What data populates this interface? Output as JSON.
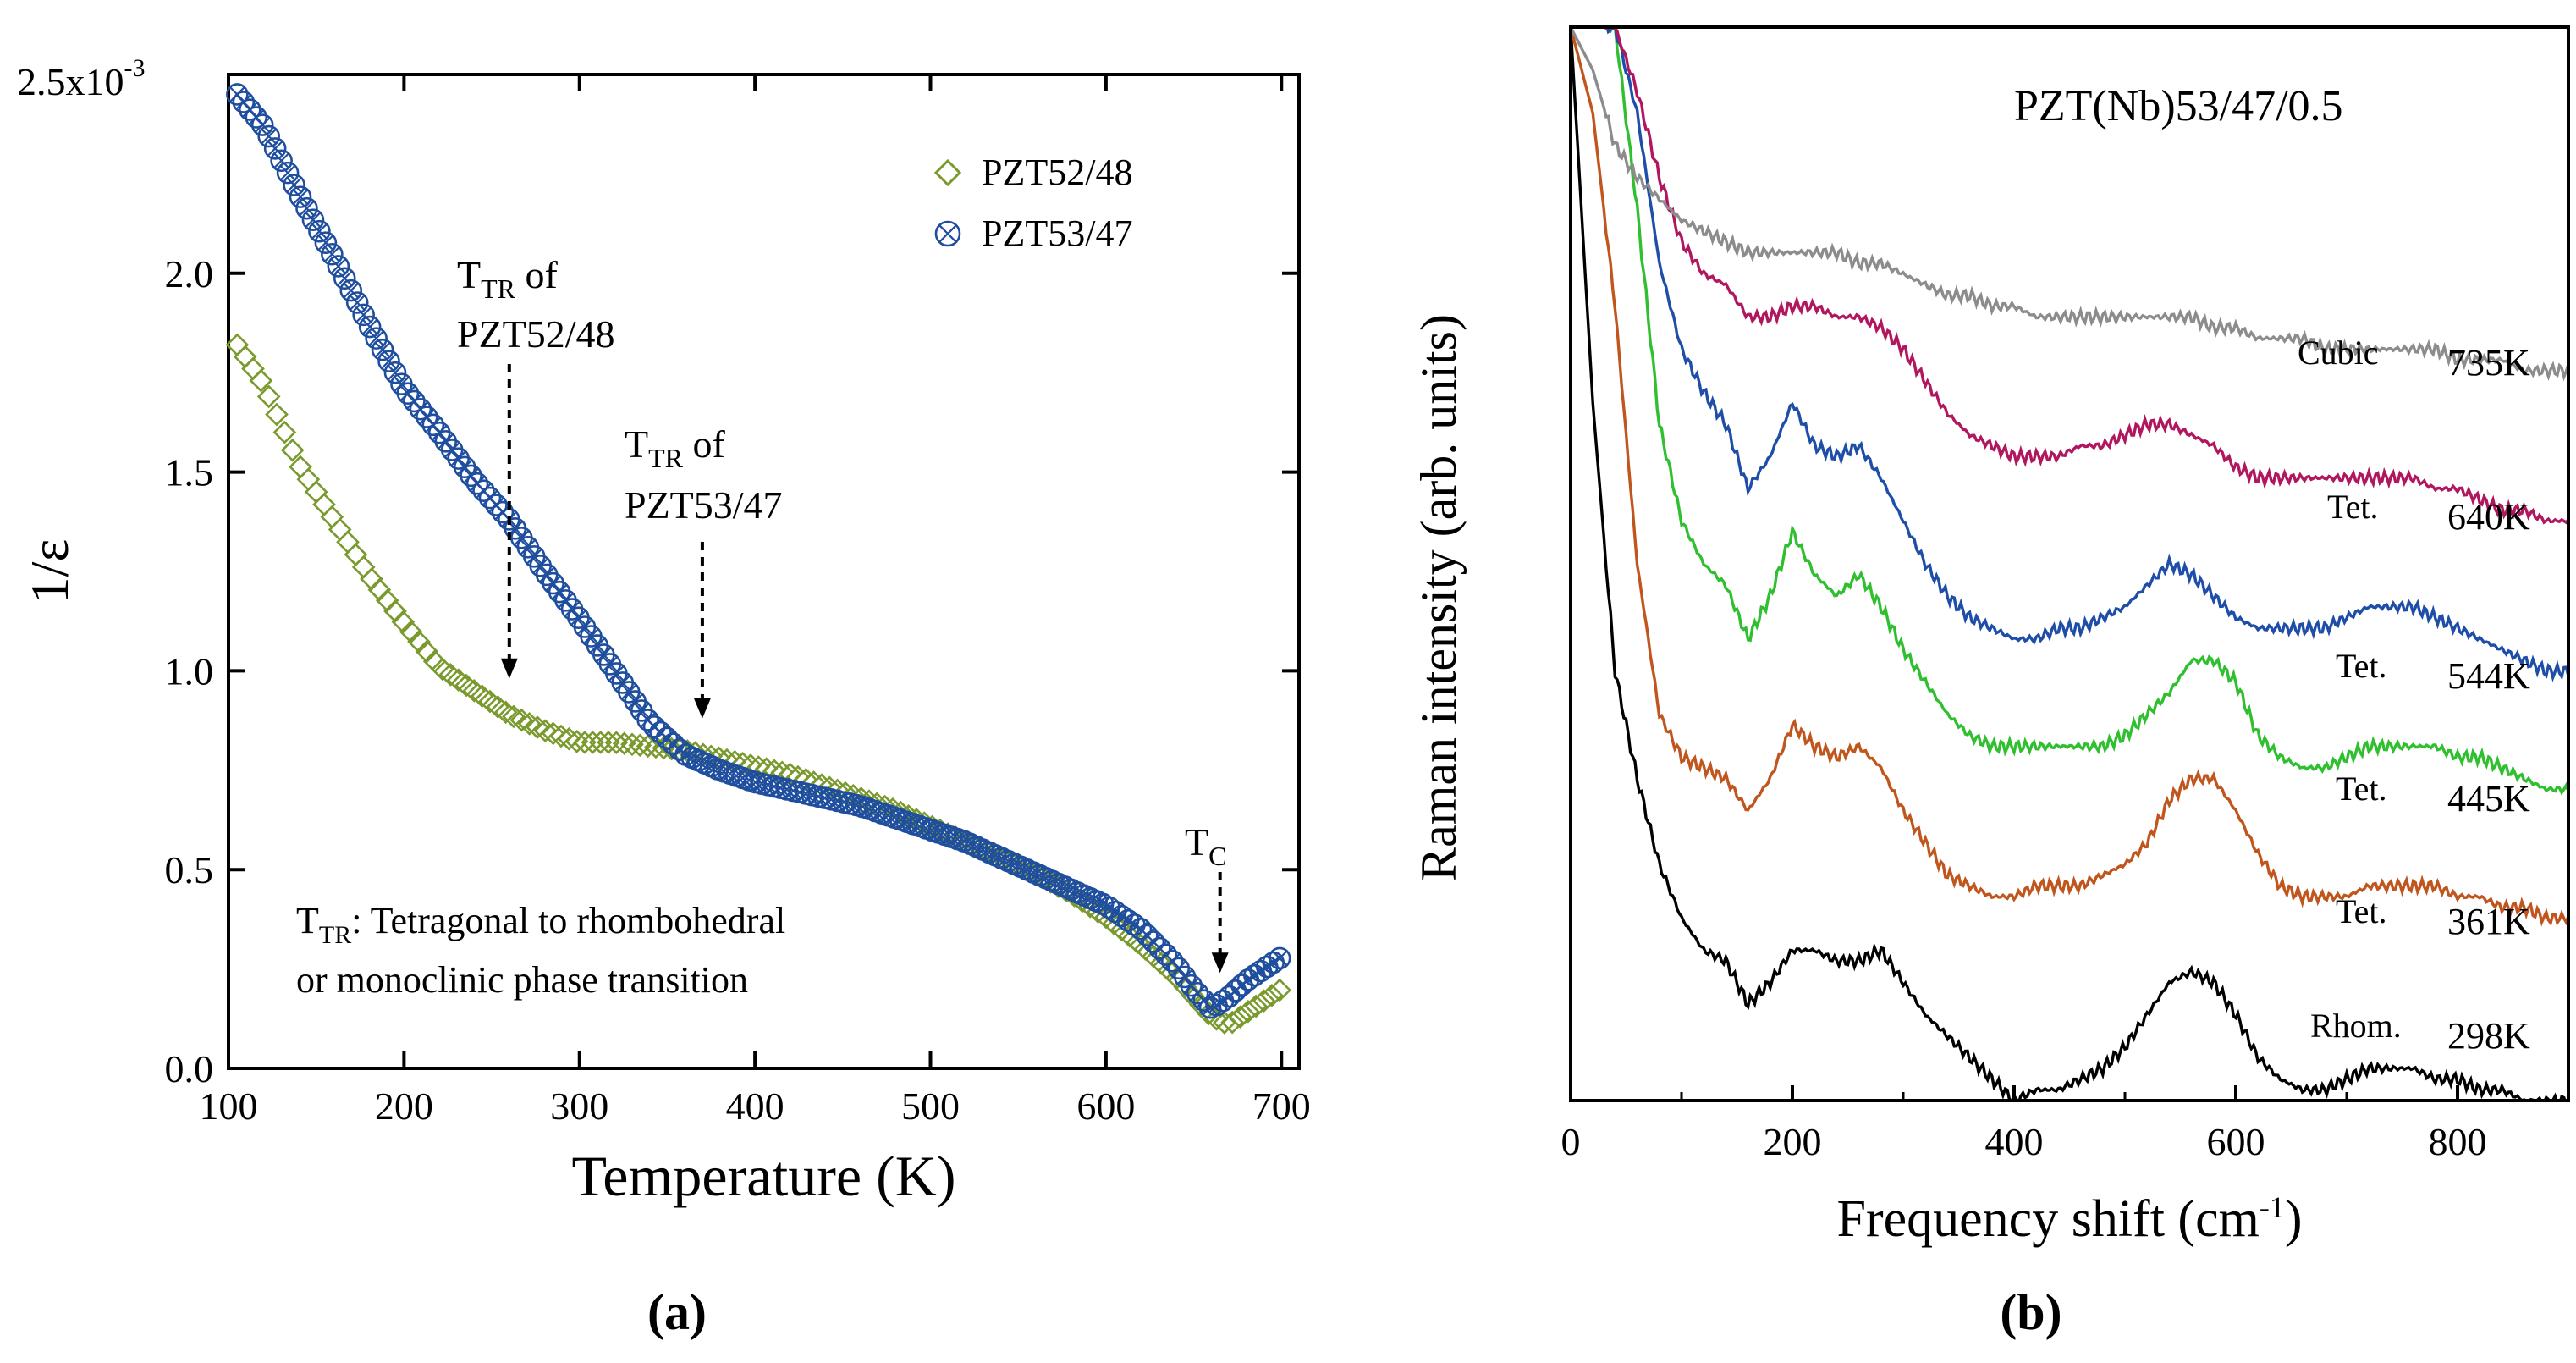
{
  "chart_data": [
    {
      "type": "scatter",
      "panel_label": "(a)",
      "xlabel": "Temperature (K)",
      "ylabel": "1/ε",
      "y_multiplier": "2.5x10",
      "y_exponent": "-3",
      "xlim": [
        100,
        710
      ],
      "ylim": [
        0.0,
        2.5
      ],
      "x_ticks": [
        "100",
        "200",
        "300",
        "400",
        "500",
        "600",
        "700"
      ],
      "y_ticks": [
        "0.0",
        "0.5",
        "1.0",
        "1.5",
        "2.0"
      ],
      "grid": false,
      "legend_position": "top-right",
      "series": [
        {
          "name": "PZT52/48",
          "marker": "diamond",
          "color": "#7a9a2e",
          "x": [
            105,
            120,
            140,
            160,
            180,
            200,
            220,
            240,
            260,
            280,
            300,
            320,
            340,
            360,
            380,
            400,
            420,
            440,
            460,
            480,
            500,
            520,
            540,
            560,
            580,
            600,
            620,
            640,
            650,
            660,
            670,
            680,
            690,
            700
          ],
          "y": [
            1.82,
            1.72,
            1.52,
            1.38,
            1.24,
            1.12,
            1.01,
            0.95,
            0.89,
            0.85,
            0.82,
            0.82,
            0.81,
            0.8,
            0.78,
            0.76,
            0.74,
            0.71,
            0.68,
            0.65,
            0.61,
            0.57,
            0.53,
            0.49,
            0.44,
            0.38,
            0.31,
            0.23,
            0.18,
            0.13,
            0.11,
            0.14,
            0.17,
            0.2
          ]
        },
        {
          "name": "PZT53/47",
          "marker": "circle-cross",
          "color": "#1f4e9e",
          "x": [
            105,
            120,
            140,
            160,
            180,
            200,
            220,
            240,
            260,
            280,
            300,
            320,
            340,
            360,
            380,
            400,
            420,
            440,
            460,
            480,
            500,
            520,
            540,
            560,
            580,
            600,
            620,
            640,
            650,
            660,
            670,
            680,
            690,
            700
          ],
          "y": [
            2.45,
            2.37,
            2.2,
            2.04,
            1.87,
            1.71,
            1.6,
            1.48,
            1.38,
            1.25,
            1.13,
            1.0,
            0.87,
            0.79,
            0.75,
            0.72,
            0.7,
            0.68,
            0.66,
            0.63,
            0.6,
            0.57,
            0.53,
            0.49,
            0.45,
            0.41,
            0.35,
            0.26,
            0.2,
            0.15,
            0.18,
            0.22,
            0.25,
            0.28
          ]
        }
      ],
      "annotations": [
        {
          "label": "T",
          "sub": "TR",
          "rest": " of",
          "line2": "PZT52/48",
          "arrow_x": 260,
          "arrow_y": 0.98
        },
        {
          "label": "T",
          "sub": "TR",
          "rest": " of",
          "line2": "PZT53/47",
          "arrow_x": 370,
          "arrow_y": 0.88
        },
        {
          "label": "T",
          "sub": "C",
          "rest": "",
          "line2": "",
          "arrow_x": 665,
          "arrow_y": 0.24
        }
      ],
      "note_line1_main": "T",
      "note_line1_sub": "TR",
      "note_line1_rest": ": Tetragonal to rhombohedral",
      "note_line2": "or monoclinic phase transition"
    },
    {
      "type": "line",
      "panel_label": "(b)",
      "title": "PZT(Nb)53/47/0.5",
      "xlabel": "Frequency shift (cm",
      "xlabel_sup": "-1",
      "xlabel_end": ")",
      "ylabel": "Raman intensity (arb. units)",
      "xlim": [
        0,
        900
      ],
      "x_ticks": [
        "0",
        "200",
        "400",
        "600",
        "800"
      ],
      "grid": false,
      "x": [
        0,
        20,
        40,
        60,
        80,
        100,
        120,
        140,
        160,
        180,
        200,
        220,
        240,
        260,
        280,
        300,
        320,
        340,
        360,
        380,
        400,
        420,
        440,
        460,
        480,
        500,
        520,
        540,
        560,
        580,
        600,
        620,
        640,
        660,
        680,
        700,
        720,
        740,
        760,
        780,
        800,
        820,
        840,
        860,
        880,
        900
      ],
      "series": [
        {
          "name": "298K",
          "phase": "Rhom.",
          "color": "#000000",
          "y": [
            100,
            65,
            40,
            30,
            22,
            17,
            14,
            13,
            9,
            11,
            14,
            14,
            13,
            13,
            14,
            11,
            8,
            6,
            4,
            2,
            0,
            1,
            1,
            2,
            3,
            5,
            8,
            11,
            12,
            11,
            8,
            4,
            2,
            1,
            1,
            2,
            3,
            3,
            3,
            2,
            2,
            1,
            1,
            0,
            0,
            0
          ]
        },
        {
          "name": "361K",
          "phase": "Tet.",
          "color": "#c0561e",
          "y": [
            100,
            92,
            74,
            50,
            36,
            32,
            31,
            30,
            27,
            30,
            35,
            33,
            32,
            33,
            31,
            27,
            24,
            21,
            20,
            19,
            19,
            20,
            20,
            20,
            21,
            22,
            24,
            28,
            30,
            30,
            27,
            23,
            20,
            19,
            19,
            19,
            20,
            20,
            20,
            20,
            19,
            19,
            18,
            18,
            17,
            17
          ]
        },
        {
          "name": "445K",
          "phase": "Tet.",
          "color": "#2fbf2f",
          "y": [
            100,
            100,
            100,
            83,
            63,
            54,
            50,
            48,
            43,
            47,
            53,
            49,
            47,
            49,
            46,
            42,
            39,
            36,
            34,
            33,
            33,
            33,
            33,
            33,
            33,
            34,
            36,
            38,
            41,
            41,
            39,
            34,
            32,
            31,
            31,
            32,
            33,
            33,
            33,
            33,
            32,
            32,
            31,
            30,
            29,
            29
          ]
        },
        {
          "name": "544K",
          "phase": "Tet.",
          "color": "#1f4ea8",
          "y": [
            100,
            100,
            100,
            92,
            78,
            70,
            66,
            63,
            57,
            60,
            65,
            61,
            60,
            61,
            58,
            54,
            50,
            47,
            45,
            44,
            43,
            43,
            44,
            44,
            45,
            46,
            48,
            50,
            49,
            47,
            45,
            44,
            44,
            44,
            44,
            45,
            46,
            46,
            46,
            45,
            44,
            43,
            42,
            41,
            40,
            40
          ]
        },
        {
          "name": "640K",
          "phase": "Tet.",
          "color": "#b0175e",
          "y": [
            100,
            100,
            100,
            94,
            86,
            80,
            77,
            76,
            73,
            73,
            74,
            74,
            73,
            73,
            72,
            70,
            67,
            64,
            62,
            61,
            60,
            60,
            60,
            61,
            61,
            62,
            63,
            63,
            62,
            61,
            59,
            58,
            58,
            58,
            58,
            58,
            58,
            58,
            58,
            57,
            57,
            56,
            55,
            55,
            54,
            54
          ]
        },
        {
          "name": "735K",
          "phase": "Cubic",
          "color": "#8c8c8c",
          "y": [
            100,
            96,
            89,
            86,
            84,
            82,
            81,
            80,
            79,
            79,
            79,
            79,
            79,
            78,
            78,
            77,
            76,
            75,
            75,
            74,
            74,
            73,
            73,
            73,
            73,
            73,
            73,
            73,
            73,
            72,
            72,
            71,
            71,
            71,
            70,
            70,
            70,
            70,
            70,
            70,
            69,
            69,
            69,
            68,
            68,
            68
          ]
        }
      ]
    }
  ]
}
